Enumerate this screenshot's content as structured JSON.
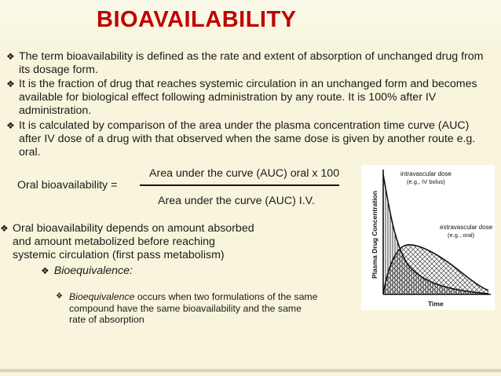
{
  "slide": {
    "title": "BIOAVAILABILITY",
    "bullets": [
      "The term bioavailability is defined as the rate and extent of absorption of unchanged drug from its dosage form.",
      "It is the fraction of drug that reaches systemic circulation in an unchanged form and becomes available for biological effect following administration by any route. It is 100% after IV administration.",
      "It is calculated by comparison of the area under the plasma concentration time curve (AUC) after IV dose of a drug with that observed when the same dose is given by another route e.g. oral."
    ],
    "formula": {
      "lhs": "Oral bioavailability =",
      "numerator": "Area under the curve (AUC) oral x 100",
      "denominator": "Area under the curve (AUC) I.V."
    },
    "bullet4": "Oral bioavailability depends on amount absorbed and amount metabolized before reaching systemic circulation (first pass metabolism)",
    "sub_heading": "Bioequivalence:",
    "sub_bullet": {
      "term": "Bioequivalence",
      "rest": " occurs when two formulations of the same compound have the same bioavailability and the same rate of absorption"
    },
    "bullet_glyph": "❖",
    "title_color": "#c00000"
  },
  "chart_data": {
    "type": "area",
    "ylabel": "Plasma Drug Concentration",
    "xlabel": "Time",
    "legend": [
      {
        "name": "intravascular dose",
        "sub": "(e.g., IV bolus)",
        "fill": "vertical-hatch"
      },
      {
        "name": "extravascular dose",
        "sub": "(e.g., oral)",
        "fill": "cross-hatch"
      }
    ],
    "series": [
      {
        "name": "intravascular dose",
        "curve": "rapid exponential decline from peak at time zero"
      },
      {
        "name": "extravascular dose",
        "curve": "rises to a peak then declines slowly"
      }
    ],
    "grid": false
  }
}
